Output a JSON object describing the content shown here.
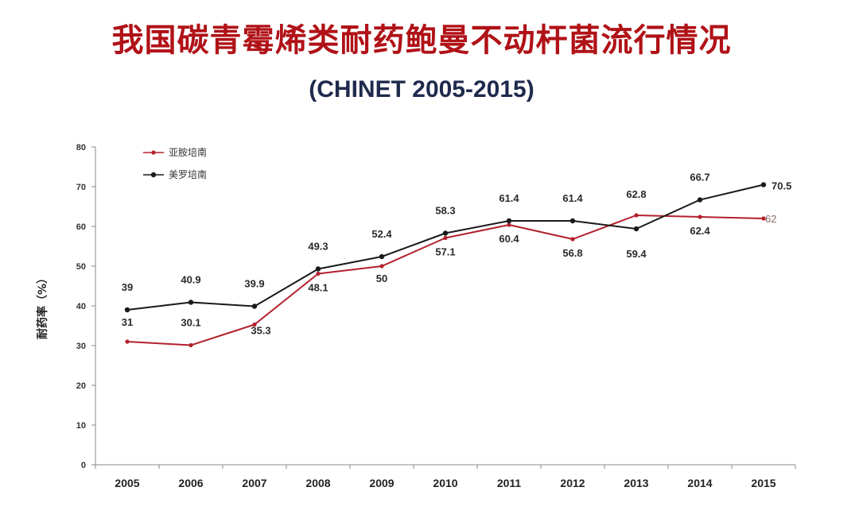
{
  "header": {
    "title": "我国碳青霉烯类耐药鲍曼不动杆菌流行情况",
    "subtitle": "(CHINET 2005-2015)"
  },
  "colors": {
    "title": "#b01217",
    "subtitle": "#1f2a4d",
    "series_red": "#b3202c",
    "series_black": "#1a1a1a"
  },
  "chart_data": {
    "type": "line",
    "title": "我国碳青霉烯类耐药鲍曼不动杆菌流行情况",
    "subtitle": "(CHINET 2005-2015)",
    "xlabel": "",
    "ylabel": "耐药率（%）",
    "ylim": [
      0,
      80
    ],
    "yticks": [
      "0",
      "10",
      "20",
      "30",
      "40",
      "50",
      "60",
      "70",
      "80"
    ],
    "categories": [
      "2005",
      "2006",
      "2007",
      "2008",
      "2009",
      "2010",
      "2011",
      "2012",
      "2013",
      "2014",
      "2015"
    ],
    "grid": false,
    "legend_position": "top-left",
    "series": [
      {
        "name": "亚胺培南",
        "color": "#b3202c",
        "values": [
          31,
          30.1,
          35.3,
          48.1,
          50,
          57.1,
          60.4,
          56.8,
          62.8,
          62.4,
          62
        ],
        "labels": [
          "31",
          "30.1",
          "35.3",
          "48.1",
          "50",
          "57.1",
          "60.4",
          "56.8",
          "62.8",
          "62.4",
          "62"
        ]
      },
      {
        "name": "美罗培南",
        "color": "#1a1a1a",
        "values": [
          39,
          40.9,
          39.9,
          49.3,
          52.4,
          58.3,
          61.4,
          61.4,
          59.4,
          66.7,
          70.5
        ],
        "labels": [
          "39",
          "40.9",
          "39.9",
          "49.3",
          "52.4",
          "58.3",
          "61.4",
          "61.4",
          "59.4",
          "66.7",
          "70.5"
        ]
      }
    ]
  }
}
